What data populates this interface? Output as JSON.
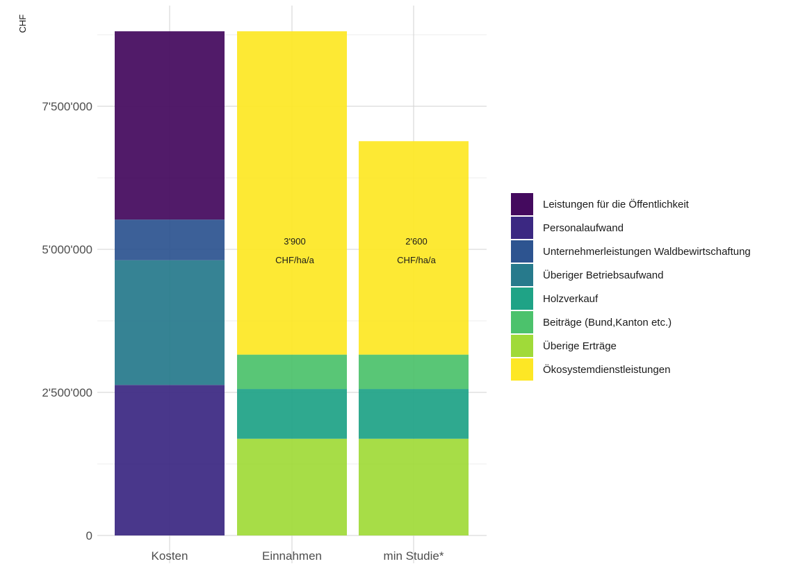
{
  "chart_data": {
    "type": "bar",
    "stacked": true,
    "ylabel": "CHF",
    "xlabel": "",
    "ylim": [
      0,
      8800000
    ],
    "y_ticks": [
      0,
      2500000,
      5000000,
      7500000
    ],
    "y_tick_labels": [
      "0",
      "2'500'000",
      "5'000'000",
      "7'500'000"
    ],
    "grid": true,
    "legend_position": "right",
    "categories": [
      "Kosten",
      "Einnahmen",
      "min Studie*"
    ],
    "series": [
      {
        "name": "Personalaufwand",
        "color": "#3b2882",
        "values": [
          2630000,
          0,
          0
        ]
      },
      {
        "name": "Überiger Betriebsaufwand",
        "color": "#277a8c",
        "values": [
          2180000,
          0,
          0
        ]
      },
      {
        "name": "Unternehmerleistungen Waldbewirtschaftung",
        "color": "#2d5490",
        "values": [
          710000,
          0,
          0
        ]
      },
      {
        "name": "Leistungen für die  Öffentlichkeit",
        "color": "#440a5e",
        "values": [
          3290000,
          0,
          0
        ]
      },
      {
        "name": "Überige Erträge",
        "color": "#a0da39",
        "values": [
          0,
          1690000,
          1690000
        ]
      },
      {
        "name": "Holzverkauf",
        "color": "#1fa386",
        "values": [
          0,
          870000,
          870000
        ]
      },
      {
        "name": "Beiträge (Bund,Kanton etc.)",
        "color": "#4cc26c",
        "values": [
          0,
          600000,
          600000
        ]
      },
      {
        "name": "Ökosystemdienstleistungen",
        "color": "#fde725",
        "values": [
          0,
          5650000,
          3730000
        ]
      }
    ],
    "legend_order": [
      "Leistungen für die  Öffentlichkeit",
      "Personalaufwand",
      "Unternehmerleistungen Waldbewirtschaftung",
      "Überiger Betriebsaufwand",
      "Holzverkauf",
      "Beiträge (Bund,Kanton etc.)",
      "Überige Erträge",
      "Ökosystemdienstleistungen"
    ],
    "annotations": [
      {
        "category": "Einnahmen",
        "lines": [
          "3'900",
          "CHF/ha/a"
        ]
      },
      {
        "category": "min Studie*",
        "lines": [
          "2'600",
          "CHF/ha/a"
        ]
      }
    ]
  }
}
